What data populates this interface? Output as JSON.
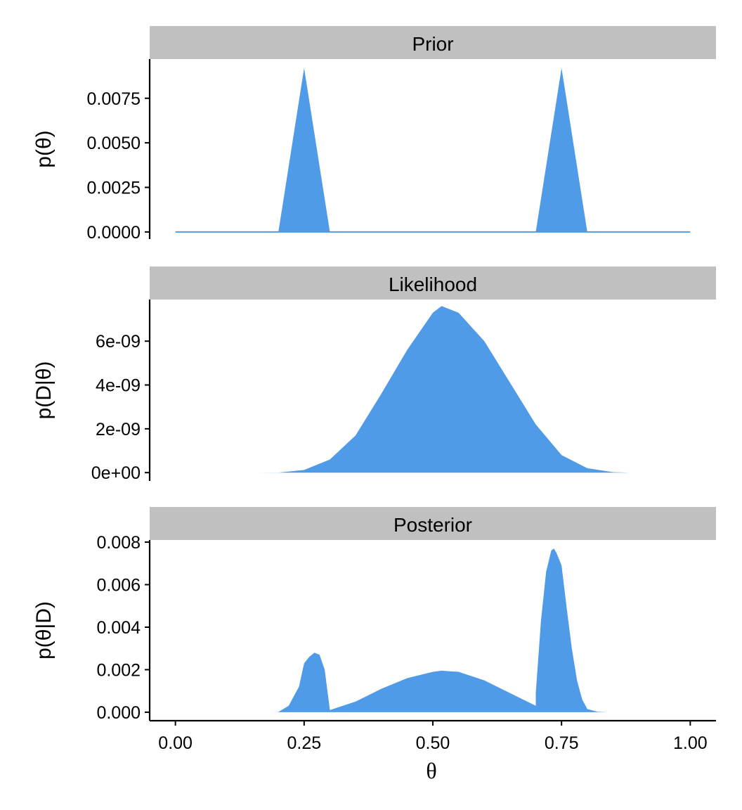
{
  "chart_data": {
    "type": "area",
    "figure": "Bayesian updating: prior, likelihood and posterior over theta",
    "colors": {
      "fill": "#4f9be8",
      "strip_background": "#c0c0c0",
      "axis": "#000000"
    },
    "x_axis": {
      "label": "θ",
      "range": [
        -0.05,
        1.05
      ],
      "ticks": [
        0,
        0.25,
        0.5,
        0.75,
        1
      ],
      "tick_labels": [
        "0.00",
        "0.25",
        "0.50",
        "0.75",
        "1.00"
      ]
    },
    "panels": [
      {
        "id": "prior",
        "strip": "Prior",
        "ylabel": "p(θ)",
        "ylim": [
          -0.0004,
          0.0097
        ],
        "yticks": [
          0,
          0.0025,
          0.005,
          0.0075
        ],
        "ytick_labels": [
          "0.0000",
          "0.0025",
          "0.0050",
          "0.0075"
        ],
        "x": [
          0,
          0.2,
          0.25,
          0.3,
          0.7,
          0.75,
          0.8,
          1
        ],
        "y": [
          0,
          0,
          0.0092,
          0,
          0,
          0.0092,
          0,
          0
        ],
        "baseline_line": true
      },
      {
        "id": "likelihood",
        "strip": "Likelihood",
        "ylabel": "p(D|θ)",
        "ylim": [
          -3.8e-10,
          7.9e-09
        ],
        "yticks": [
          0,
          2e-09,
          4e-09,
          6e-09
        ],
        "ytick_labels": [
          "0e+00",
          "2e-09",
          "4e-09",
          "6e-09"
        ],
        "x": [
          0.16,
          0.2,
          0.25,
          0.3,
          0.35,
          0.4,
          0.45,
          0.5,
          0.517,
          0.55,
          0.6,
          0.65,
          0.7,
          0.75,
          0.8,
          0.85,
          0.88
        ],
        "y": [
          0,
          2e-12,
          1.2e-10,
          6e-10,
          1.7e-09,
          3.6e-09,
          5.6e-09,
          7.3e-09,
          7.6e-09,
          7.3e-09,
          6e-09,
          4.1e-09,
          2.2e-09,
          8e-10,
          2e-10,
          2e-11,
          0
        ],
        "baseline_line": false
      },
      {
        "id": "posterior",
        "strip": "Posterior",
        "ylabel": "p(θ|D)",
        "ylim": [
          -0.0004,
          0.0081
        ],
        "yticks": [
          0,
          0.002,
          0.004,
          0.006,
          0.008
        ],
        "ytick_labels": [
          "0.000",
          "0.002",
          "0.004",
          "0.006",
          "0.008"
        ],
        "x": [
          0.19,
          0.2,
          0.22,
          0.24,
          0.25,
          0.26,
          0.27,
          0.28,
          0.29,
          0.3,
          0.35,
          0.4,
          0.45,
          0.5,
          0.517,
          0.55,
          0.6,
          0.65,
          0.7,
          0.7,
          0.71,
          0.72,
          0.73,
          0.735,
          0.74,
          0.75,
          0.76,
          0.77,
          0.78,
          0.79,
          0.8,
          0.82,
          0.84
        ],
        "y": [
          0,
          1e-05,
          0.0003,
          0.0012,
          0.0023,
          0.0026,
          0.0028,
          0.0027,
          0.002,
          0.0001,
          0.0005,
          0.0011,
          0.0016,
          0.0019,
          0.00195,
          0.0019,
          0.0015,
          0.0009,
          0.0003,
          0.0009,
          0.0043,
          0.0066,
          0.0076,
          0.0077,
          0.0075,
          0.0069,
          0.0049,
          0.003,
          0.0015,
          0.0006,
          0.00015,
          2e-05,
          0
        ]
      }
    ]
  }
}
